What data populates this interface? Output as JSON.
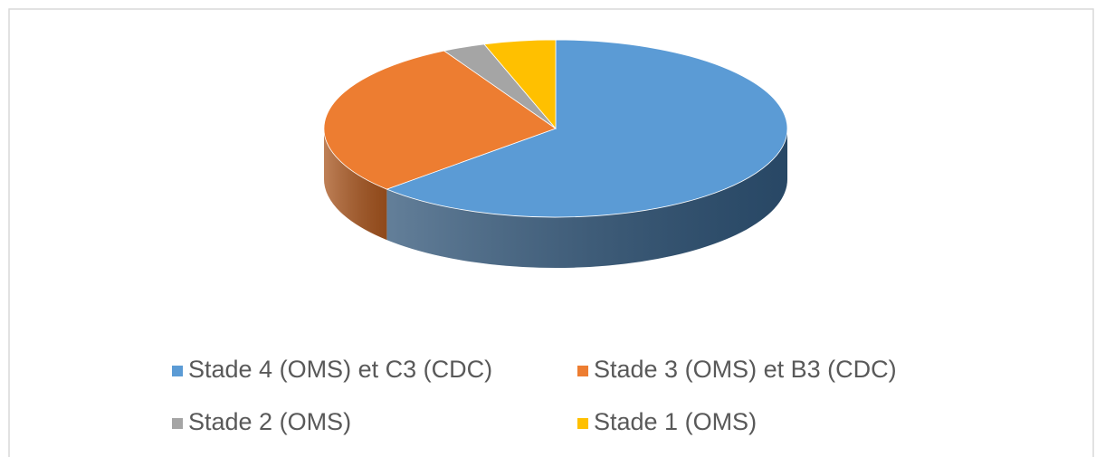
{
  "chart_data": {
    "type": "pie3d",
    "categories": [
      "Stade 4 (OMS) et C3 (CDC)",
      "Stade 3 (OMS) et B3 (CDC)",
      "Stade 2 (OMS)",
      "Stade 1 (OMS)"
    ],
    "values": [
      63,
      29,
      3,
      5
    ],
    "colors": [
      "#5b9bd5",
      "#ed7d31",
      "#a5a5a5",
      "#ffc000"
    ],
    "side_colors": [
      "#2f5477",
      "#a9561f",
      "#767676",
      "#b78a00"
    ],
    "legend": "bottom"
  }
}
